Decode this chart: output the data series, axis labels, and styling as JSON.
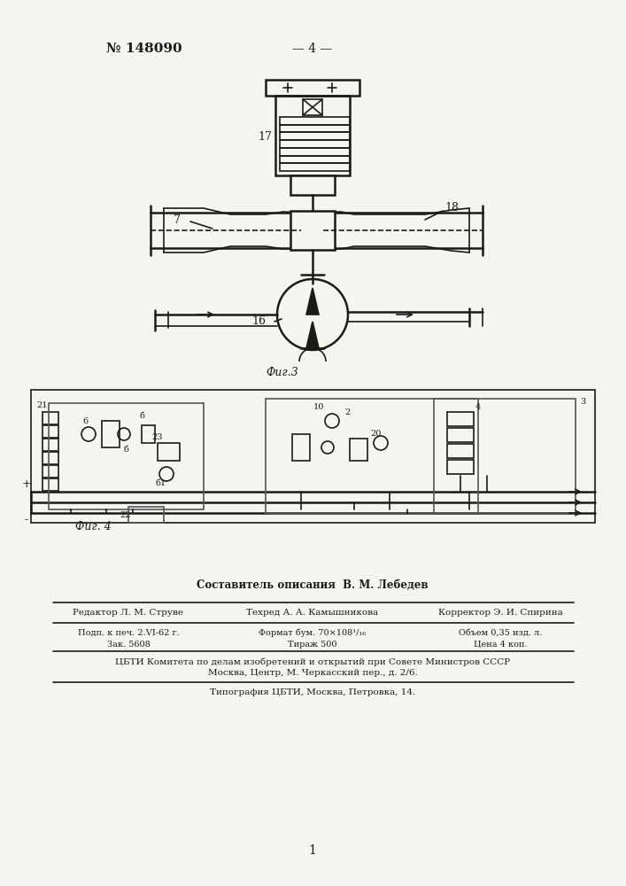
{
  "bg_color": "#f5f5f0",
  "line_color": "#1a1a1a",
  "page_number": "— 4 —",
  "patent_number": "№ 148090",
  "fig3_label": "Фиг.3",
  "fig4_label": "Фиг. 4",
  "label_7": "7",
  "label_16": "16",
  "label_17": "17",
  "label_18": "18",
  "label_22": "22",
  "footer_composer": "Составитель описания  В. М. Лебедев",
  "footer_editor": "Редактор Л. М. Струве",
  "footer_techred": "Техред А. А. Камышникова",
  "footer_corrector": "Корректор Э. И. Спирина",
  "footer_line1": "Подп. к печ. 2.VI-62 г.",
  "footer_line2": "Зак. 5608",
  "footer_format": "Формат бум. 70×108¹/₁₆",
  "footer_tirazh": "Тираж 500",
  "footer_obem": "Объем 0,35 изд. л.",
  "footer_cena": "Цена 4 коп.",
  "footer_cbti": "ЦБТИ Комитета по делам изобретений и открытий при Совете Министров СССР",
  "footer_moscow": "Москва, Центр, М. Черкасский пер., д. 2/6.",
  "footer_tipografia": "Типография ЦБТИ, Москва, Петровка, 14.",
  "page_num_bottom": "1"
}
